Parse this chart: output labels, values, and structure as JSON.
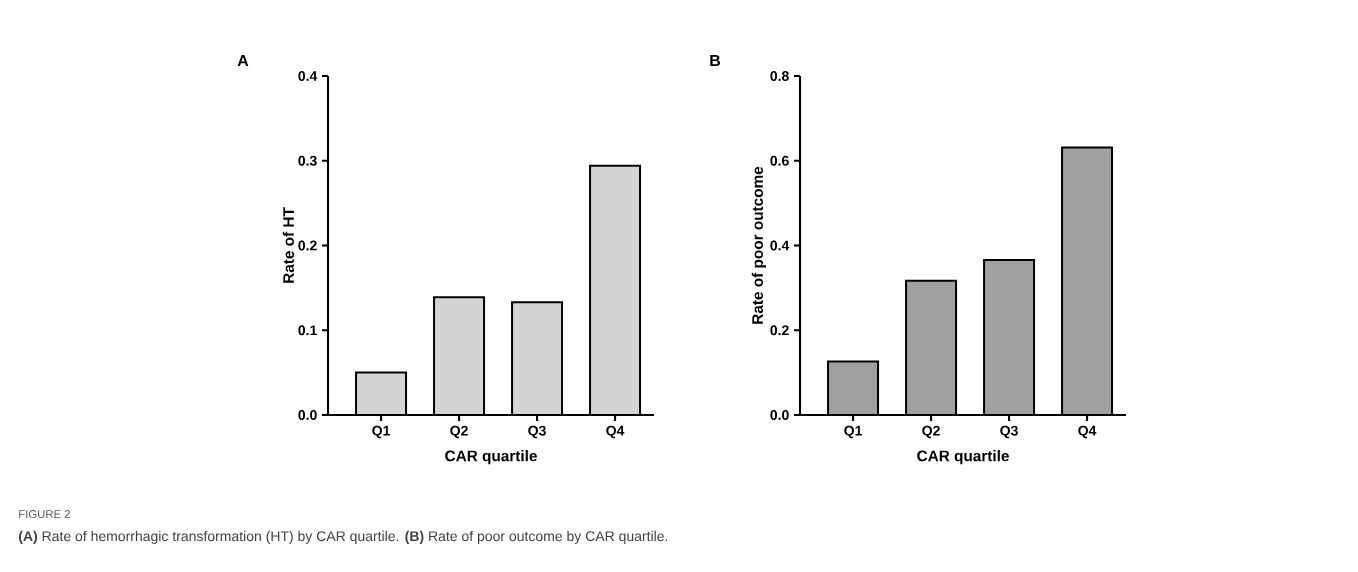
{
  "chart_data": [
    {
      "type": "bar",
      "title": "A",
      "xlabel": "CAR quartile",
      "ylabel": "Rate of HT",
      "categories": [
        "Q1",
        "Q2",
        "Q3",
        "Q4"
      ],
      "values": [
        0.05,
        0.139,
        0.133,
        0.294
      ],
      "color": "#d4d4d4",
      "ylim": [
        0,
        0.4
      ],
      "yticks": [
        {
          "value": 0,
          "label": "0.0"
        },
        0.1,
        0.2,
        0.3,
        0.4
      ],
      "annotations": [
        "FIGURE 2",
        "**(A)** Rate of hemorrhagic transformation (HT) by CAR quartile. **(B)** Rate of poor outcome by CAR quartile."
      ]
    },
    {
      "type": "bar",
      "title": "B",
      "xlabel": "CAR quartile",
      "ylabel": "Rate of poor outcome",
      "categories": [
        "Q1",
        "Q2",
        "Q3",
        "Q4"
      ],
      "values": [
        0.126,
        0.317,
        0.366,
        0.631
      ],
      "color": "#a0a0a0",
      "ylim": [
        0,
        0.8
      ],
      "yticks": [
        {
          "value": 0,
          "label": "0.0"
        },
        0.2,
        0.4,
        0.6,
        0.8
      ]
    }
  ]
}
